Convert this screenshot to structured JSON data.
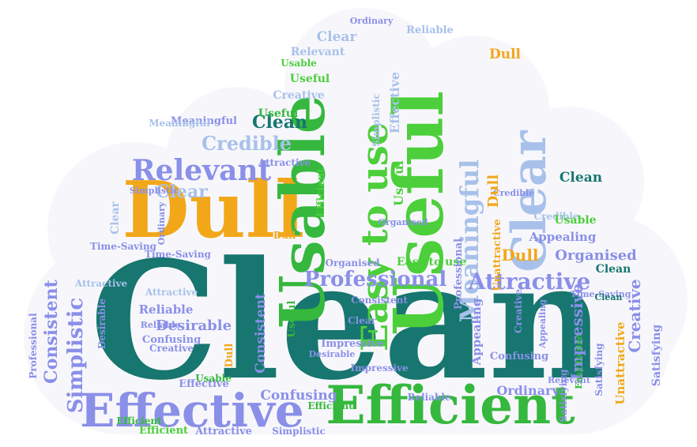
{
  "palette": {
    "teal": "#17766f",
    "green": "#35b83d",
    "lime": "#4ccf3b",
    "orange": "#f2a719",
    "periwinkle": "#8a8fe8",
    "lightblue": "#a8c1ea",
    "cloud": "#f7f7fb"
  },
  "words": [
    {
      "text": "Clean",
      "color": "#17766f"
    },
    {
      "text": "Efficient",
      "color": "#35b83d"
    },
    {
      "text": "Effective",
      "color": "#8a8fe8"
    },
    {
      "text": "Dull",
      "color": "#f2a719"
    },
    {
      "text": "Usable",
      "color": "#35b83d"
    },
    {
      "text": "Useful",
      "color": "#4ccf3b"
    },
    {
      "text": "Easy to use",
      "color": "#4ccf3b"
    },
    {
      "text": "Clear",
      "color": "#a8c1ea"
    },
    {
      "text": "Relevant",
      "color": "#8a8fe8"
    },
    {
      "text": "Meaningful",
      "color": "#a8c1ea"
    },
    {
      "text": "Professional",
      "color": "#8a8fe8"
    },
    {
      "text": "Attractive",
      "color": "#8a8fe8"
    },
    {
      "text": "Simplistic",
      "color": "#8a8fe8"
    },
    {
      "text": "Consistent",
      "color": "#8a8fe8"
    },
    {
      "text": "Credible",
      "color": "#a8c1ea"
    },
    {
      "text": "Desirable",
      "color": "#8a8fe8"
    },
    {
      "text": "Impressive",
      "color": "#8a8fe8"
    },
    {
      "text": "Creative",
      "color": "#8a8fe8"
    },
    {
      "text": "Organised",
      "color": "#8a8fe8"
    },
    {
      "text": "Appealing",
      "color": "#8a8fe8"
    },
    {
      "text": "Ordinary",
      "color": "#8a8fe8"
    },
    {
      "text": "Confusing",
      "color": "#8a8fe8"
    },
    {
      "text": "Reliable",
      "color": "#8a8fe8"
    },
    {
      "text": "Satisfying",
      "color": "#8a8fe8"
    },
    {
      "text": "Unattractive",
      "color": "#f2a719"
    },
    {
      "text": "Time-Saving",
      "color": "#8a8fe8"
    },
    {
      "text": "Clean",
      "color": "#17766f"
    },
    {
      "text": "Clean",
      "color": "#17766f"
    },
    {
      "text": "Dull",
      "color": "#f2a719"
    },
    {
      "text": "Dull",
      "color": "#f2a719"
    },
    {
      "text": "Dull",
      "color": "#f2a719"
    },
    {
      "text": "Clear",
      "color": "#a8c1ea"
    },
    {
      "text": "Clear",
      "color": "#a8c1ea"
    },
    {
      "text": "Clear",
      "color": "#a8c1ea"
    },
    {
      "text": "Credible",
      "color": "#a8c1ea"
    },
    {
      "text": "Relevant",
      "color": "#a8c1ea"
    },
    {
      "text": "Useful",
      "color": "#4ccf3b"
    },
    {
      "text": "Useful",
      "color": "#4ccf3b"
    },
    {
      "text": "Usable",
      "color": "#4ccf3b"
    },
    {
      "text": "Usable",
      "color": "#4ccf3b"
    },
    {
      "text": "Easy to use",
      "color": "#4ccf3b"
    },
    {
      "text": "Efficient",
      "color": "#4ccf3b"
    },
    {
      "text": "Efficient",
      "color": "#4ccf3b"
    },
    {
      "text": "Effective",
      "color": "#a8c1ea"
    },
    {
      "text": "Creative",
      "color": "#a8c1ea"
    },
    {
      "text": "Creative",
      "color": "#8a8fe8"
    },
    {
      "text": "Attractive",
      "color": "#8a8fe8"
    },
    {
      "text": "Attractive",
      "color": "#a8c1ea"
    },
    {
      "text": "Impressive",
      "color": "#8a8fe8"
    },
    {
      "text": "Professional",
      "color": "#8a8fe8"
    },
    {
      "text": "Consistent",
      "color": "#8a8fe8"
    },
    {
      "text": "Reliable",
      "color": "#8a8fe8"
    },
    {
      "text": "Reliable",
      "color": "#a8c1ea"
    },
    {
      "text": "Ordinary",
      "color": "#8a8fe8"
    },
    {
      "text": "Organised",
      "color": "#8a8fe8"
    },
    {
      "text": "Confusing",
      "color": "#8a8fe8"
    },
    {
      "text": "Satisfying",
      "color": "#8a8fe8"
    },
    {
      "text": "Simplistic",
      "color": "#8a8fe8"
    },
    {
      "text": "Desirable",
      "color": "#8a8fe8"
    },
    {
      "text": "Appealing",
      "color": "#8a8fe8"
    },
    {
      "text": "Meaningful",
      "color": "#8a8fe8"
    },
    {
      "text": "Time-Saving",
      "color": "#8a8fe8"
    },
    {
      "text": "Unattractive",
      "color": "#f2a719"
    },
    {
      "text": "Dull",
      "color": "#f2a719"
    },
    {
      "text": "Clean",
      "color": "#17766f"
    },
    {
      "text": "Useful",
      "color": "#35b83d"
    },
    {
      "text": "Efficient",
      "color": "#35b83d"
    },
    {
      "text": "Simplistic",
      "color": "#8a8fe8"
    },
    {
      "text": "Desirable",
      "color": "#8a8fe8"
    },
    {
      "text": "Professional",
      "color": "#8a8fe8"
    },
    {
      "text": "Reliable",
      "color": "#8a8fe8"
    },
    {
      "text": "Attractive",
      "color": "#8a8fe8"
    },
    {
      "text": "Confusing",
      "color": "#8a8fe8"
    },
    {
      "text": "Ordinary",
      "color": "#8a8fe8"
    },
    {
      "text": "Effective",
      "color": "#8a8fe8"
    },
    {
      "text": "Creative",
      "color": "#8a8fe8"
    },
    {
      "text": "Satisfying",
      "color": "#8a8fe8"
    },
    {
      "text": "Consistent",
      "color": "#8a8fe8"
    },
    {
      "text": "Appealing",
      "color": "#8a8fe8"
    },
    {
      "text": "Organised",
      "color": "#8a8fe8"
    },
    {
      "text": "Relevant",
      "color": "#8a8fe8"
    },
    {
      "text": "Impressive",
      "color": "#8a8fe8"
    },
    {
      "text": "Clear",
      "color": "#8a8fe8"
    },
    {
      "text": "Credible",
      "color": "#8a8fe8"
    },
    {
      "text": "Usable",
      "color": "#35b83d"
    },
    {
      "text": "Easy to use",
      "color": "#35b83d"
    },
    {
      "text": "Clean",
      "color": "#17766f"
    },
    {
      "text": "Dull",
      "color": "#f2a719"
    },
    {
      "text": "Efficient",
      "color": "#35b83d"
    },
    {
      "text": "Useful",
      "color": "#35b83d"
    },
    {
      "text": "Attractive",
      "color": "#a8c1ea"
    },
    {
      "text": "Time-Saving",
      "color": "#8a8fe8"
    },
    {
      "text": "Meaningful",
      "color": "#a8c1ea"
    },
    {
      "text": "Simplistic",
      "color": "#a8c1ea"
    }
  ]
}
